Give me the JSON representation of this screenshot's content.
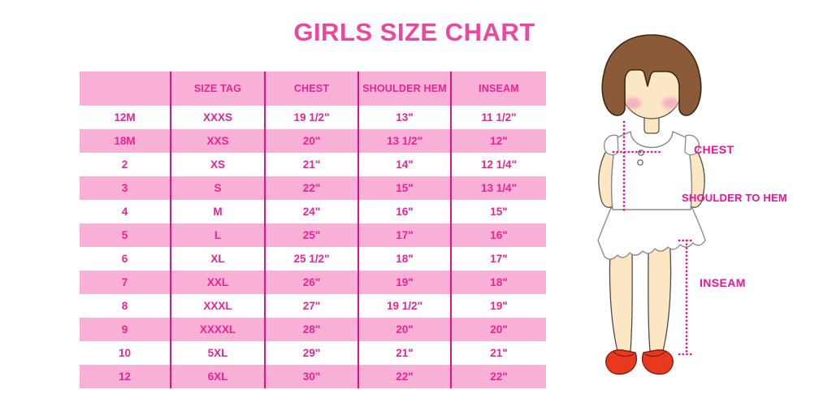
{
  "page": {
    "title": "GIRLS SIZE CHART"
  },
  "chart_data": {
    "type": "table",
    "title": "GIRLS SIZE CHART",
    "columns": [
      "",
      "SIZE TAG",
      "CHEST",
      "SHOULDER HEM",
      "INSEAM"
    ],
    "rows": [
      [
        "12M",
        "XXXS",
        "19 1/2\"",
        "13\"",
        "11 1/2\""
      ],
      [
        "18M",
        "XXS",
        "20\"",
        "13 1/2\"",
        "12\""
      ],
      [
        "2",
        "XS",
        "21\"",
        "14\"",
        "12 1/4\""
      ],
      [
        "3",
        "S",
        "22\"",
        "15\"",
        "13 1/4\""
      ],
      [
        "4",
        "M",
        "24\"",
        "16\"",
        "15\""
      ],
      [
        "5",
        "L",
        "25\"",
        "17\"",
        "16\""
      ],
      [
        "6",
        "XL",
        "25 1/2\"",
        "18\"",
        "17\""
      ],
      [
        "7",
        "XXL",
        "26\"",
        "19\"",
        "18\""
      ],
      [
        "8",
        "XXXL",
        "27\"",
        "19 1/2\"",
        "19\""
      ],
      [
        "9",
        "XXXXL",
        "28\"",
        "20\"",
        "20\""
      ],
      [
        "10",
        "5XL",
        "29\"",
        "21\"",
        "21\""
      ],
      [
        "12",
        "6XL",
        "30\"",
        "22\"",
        "22\""
      ]
    ],
    "layout": {
      "stripe_pattern": "alternating white/pink starting white",
      "grid": "vertical dividers only"
    }
  },
  "diagram": {
    "labels": {
      "chest": "CHEST",
      "shoulder_to_hem": "SHOULDER TO HEM",
      "inseam": "INSEAM"
    }
  },
  "colors": {
    "title_pink": "#f0459f",
    "table_text_pink": "#ec2492",
    "row_stripe_pink": "#f9b0d7",
    "column_divider_pink": "#e01287",
    "label_pink": "#f40e98",
    "dotted_line_pink": "#f20d90",
    "hair_brown": "#8a5a39",
    "skin_tone": "#fbe7c4",
    "shoe_red": "#e8391f",
    "background": "#ffffff"
  }
}
